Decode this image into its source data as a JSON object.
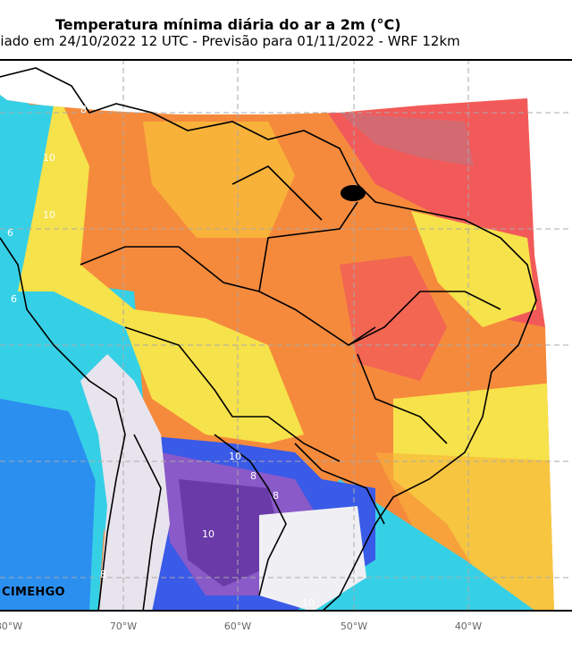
{
  "header": {
    "title": "Temperatura mínima diária do ar a 2m (°C)",
    "subtitle": "iciado em 24/10/2022 12 UTC - Previsão para 01/11/2022 - WRF 12km"
  },
  "map": {
    "variable": "Temperatura mínima diária do ar a 2m",
    "units": "°C",
    "model": "WRF 12km",
    "run": "24/10/2022 12 UTC",
    "valid": "01/11/2022",
    "region": "América do Sul",
    "gridlines": true,
    "colors": {
      "very_hot": "#f25a5a",
      "hot": "#f58a3c",
      "warm": "#f8b23a",
      "mild": "#f6e24a",
      "cool": "#36d0e6",
      "cold": "#2b8ff0",
      "colder": "#3a5ae8",
      "coldest": "#8a5ac8",
      "frost": "#6a3aa8",
      "andes": "#e8e4ee",
      "outside": "#ffffff",
      "boundary": "#000000",
      "grid": "#aaaaaa"
    },
    "contour_labels": [
      "10",
      "8",
      "6",
      "10",
      "10",
      "8",
      "8",
      "10",
      "8",
      "6",
      "10"
    ],
    "longitude_labels": [
      "80°W",
      "70°W",
      "60°W",
      "50°W",
      "40°W"
    ]
  },
  "branding": {
    "logo_text": "CIMEHGO"
  }
}
